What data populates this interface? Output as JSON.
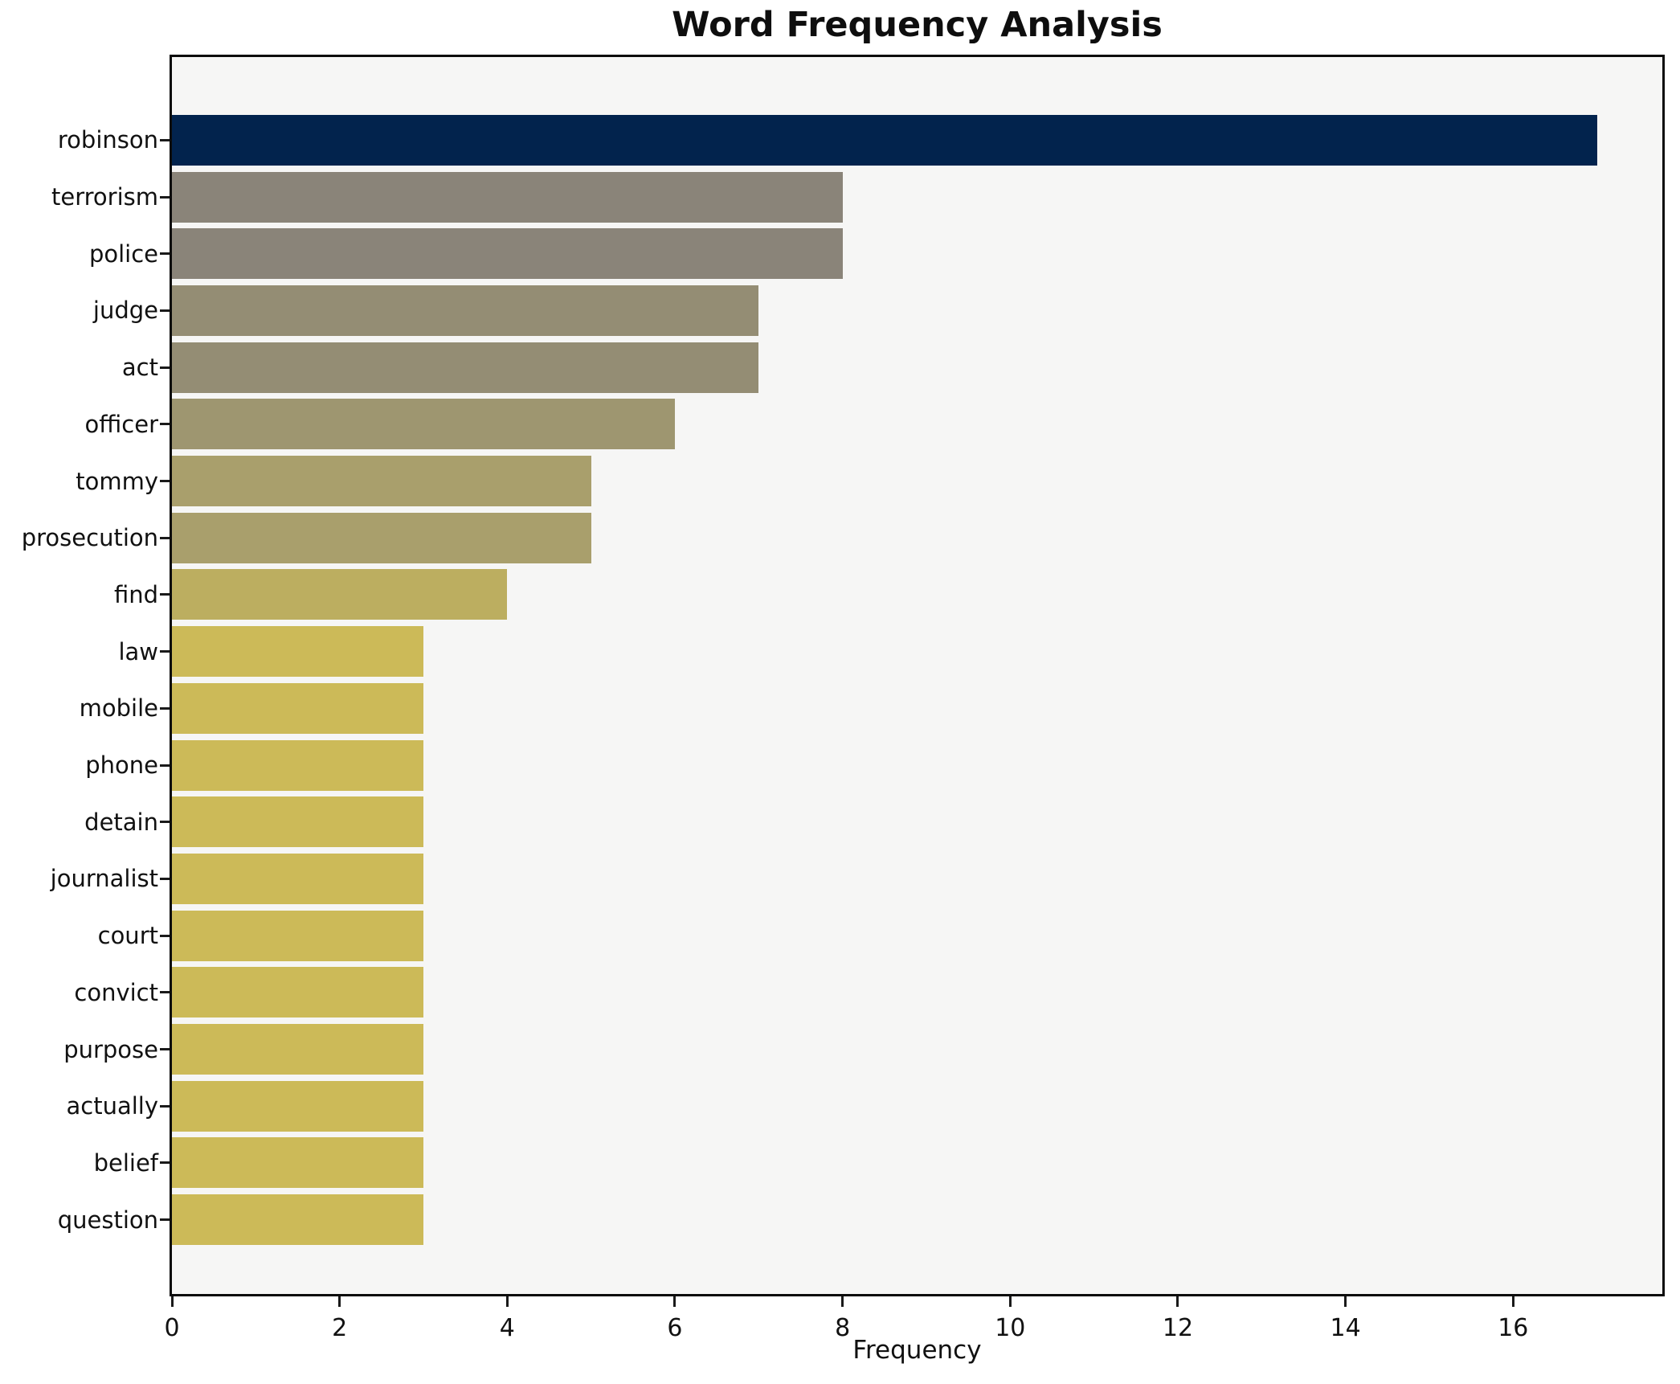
{
  "chart_data": {
    "type": "bar",
    "orientation": "horizontal",
    "title": "Word Frequency Analysis",
    "xlabel": "Frequency",
    "ylabel": "",
    "categories": [
      "robinson",
      "terrorism",
      "police",
      "judge",
      "act",
      "officer",
      "tommy",
      "prosecution",
      "find",
      "law",
      "mobile",
      "phone",
      "detain",
      "journalist",
      "court",
      "convict",
      "purpose",
      "actually",
      "belief",
      "question"
    ],
    "values": [
      17,
      8,
      8,
      7,
      7,
      6,
      5,
      5,
      4,
      3,
      3,
      3,
      3,
      3,
      3,
      3,
      3,
      3,
      3,
      3
    ],
    "bar_colors": [
      "#02234d",
      "#8a8479",
      "#8a8479",
      "#948d74",
      "#948d74",
      "#9e9670",
      "#a99f6c",
      "#a99f6c",
      "#bcae60",
      "#ccba58",
      "#ccba58",
      "#ccba58",
      "#ccba58",
      "#ccba58",
      "#ccba58",
      "#ccba58",
      "#ccba58",
      "#ccba58",
      "#ccba58",
      "#ccba58"
    ],
    "xlim": [
      0,
      17.78
    ],
    "x_ticks": [
      0,
      2,
      4,
      6,
      8,
      10,
      12,
      14,
      16
    ],
    "grid": false,
    "legend": null,
    "plot_background": "#f6f6f5",
    "figure_background": "#ffffff",
    "frame_color": "#0b0b0b"
  }
}
